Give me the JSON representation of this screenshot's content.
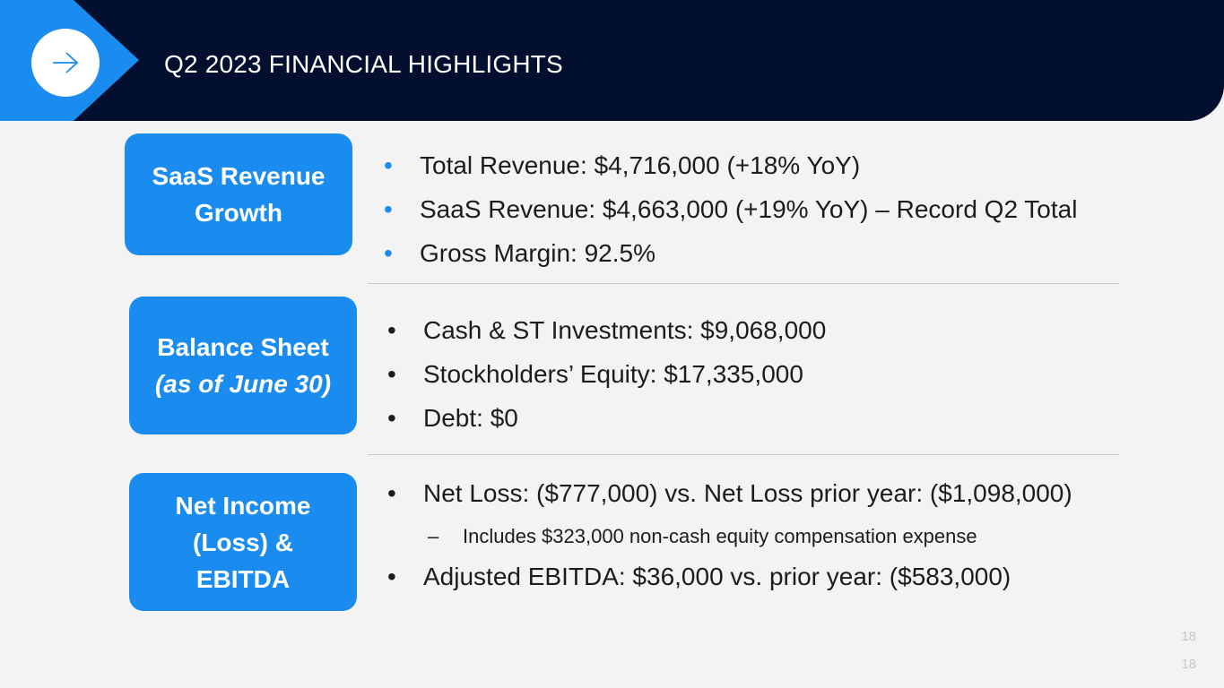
{
  "header": {
    "title": "Q2 2023 FINANCIAL HIGHLIGHTS"
  },
  "sections": [
    {
      "label_lines": [
        "SaaS Revenue",
        "Growth"
      ],
      "bullets": [
        "Total Revenue: $4,716,000  (+18% YoY)",
        "SaaS Revenue: $4,663,000  (+19% YoY) – Record Q2 Total",
        "Gross Margin: 92.5%"
      ]
    },
    {
      "label_lines": [
        "Balance Sheet",
        "(as of June 30)"
      ],
      "bullets": [
        "Cash & ST Investments: $9,068,000",
        "Stockholders’ Equity: $17,335,000",
        "Debt: $0"
      ]
    },
    {
      "label_lines": [
        "Net Income",
        "(Loss) &",
        "EBITDA"
      ],
      "bullets": [
        "Net Loss: ($777,000) vs. Net Loss prior year: ($1,098,000)",
        "Adjusted EBITDA: $36,000 vs. prior year: ($583,000)"
      ],
      "sub_bullet": "Includes $323,000 non-cash equity compensation expense"
    }
  ],
  "glyphs": {
    "bullet": "•",
    "dash": "–"
  },
  "page_number": "18",
  "colors": {
    "navy": "#030f2e",
    "accent_blue": "#1a8cf0",
    "background": "#f3f3f4"
  },
  "icons": {
    "header_icon": "arrow-right-icon"
  }
}
